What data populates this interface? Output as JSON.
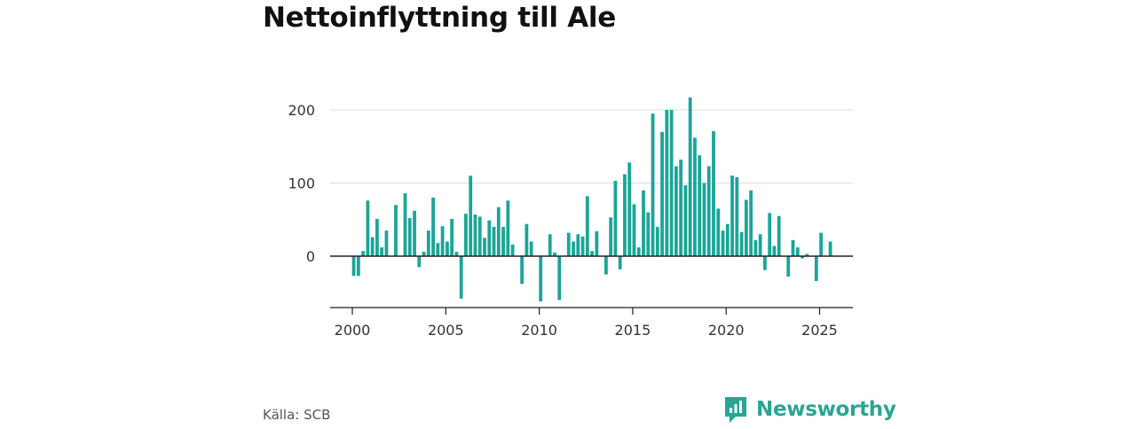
{
  "title": "Nettoinflyttning till Ale",
  "source": "Källa: SCB",
  "brand": {
    "name": "Newsworthy",
    "logo_icon": "newsworthy-logo-icon"
  },
  "colors": {
    "bar": "#1ba597",
    "grid": "#dddddd",
    "axis": "#222222",
    "brand": "#2aa594"
  },
  "chart_data": {
    "type": "bar",
    "title": "Nettoinflyttning till Ale",
    "xlabel": "",
    "ylabel": "",
    "grid": true,
    "xlim": [
      2000,
      2026.5
    ],
    "ylim": [
      -70,
      220
    ],
    "yticks": [
      0,
      100,
      200
    ],
    "xticks": [
      2000,
      2005,
      2010,
      2015,
      2020,
      2025
    ],
    "frequency": "quarterly",
    "start": "2000 Q1",
    "values": [
      -27,
      -27,
      7,
      76,
      26,
      51,
      12,
      35,
      0,
      70,
      0,
      86,
      52,
      62,
      -15,
      6,
      35,
      80,
      18,
      41,
      20,
      51,
      6,
      -58,
      58,
      110,
      57,
      54,
      25,
      49,
      40,
      67,
      40,
      76,
      16,
      0,
      -38,
      44,
      20,
      0,
      -62,
      0,
      30,
      5,
      -60,
      0,
      32,
      20,
      30,
      27,
      82,
      7,
      34,
      0,
      -25,
      53,
      103,
      -18,
      112,
      128,
      71,
      12,
      90,
      60,
      195,
      40,
      170,
      200,
      200,
      123,
      132,
      97,
      217,
      162,
      138,
      100,
      123,
      171,
      65,
      35,
      44,
      110,
      108,
      33,
      77,
      90,
      22,
      30,
      -19,
      59,
      14,
      55,
      0,
      -28,
      22,
      12,
      -3,
      3,
      0,
      -34,
      32,
      0,
      20
    ]
  }
}
